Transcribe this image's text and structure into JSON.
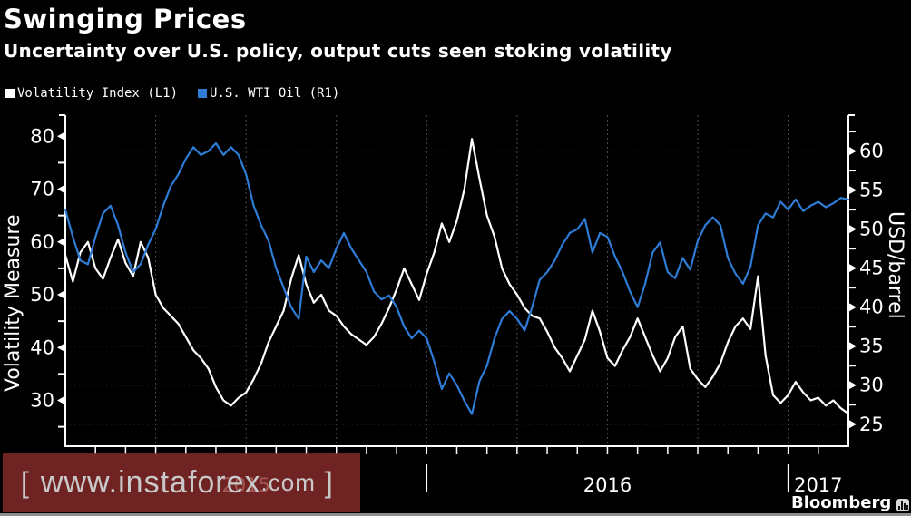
{
  "header": {
    "title": "Swinging Prices",
    "subtitle": "Uncertainty over U.S. policy, output cuts seen stoking volatility"
  },
  "legend": [
    {
      "label": "Volatility Index (L1)",
      "color": "#ffffff"
    },
    {
      "label": "U.S. WTI Oil (R1)",
      "color": "#2e7cd6"
    }
  ],
  "watermark": {
    "open_bracket": "[",
    "main": "www.instaforex",
    "suffix": ".com",
    "close_bracket": "]"
  },
  "credit": {
    "text": "Bloomberg",
    "icon": "bloomberg-terminal-icon"
  },
  "colors": {
    "background": "#000000",
    "grid": "#4a4a4a",
    "axis": "#ffffff",
    "volatility_line": "#ffffff",
    "wti_line": "#2e7cd6",
    "watermark_bg": "rgba(140,44,44,0.8)",
    "watermark_text": "#c9c9c9",
    "bottom_strip": "#8f8f8f"
  },
  "chart_data": {
    "type": "line",
    "title": "Swinging Prices",
    "subtitle": "Uncertainty over U.S. policy, output cuts seen stoking volatility",
    "sampling": "weekly, Jan 2015 - Feb 2017",
    "xlim_months": [
      0,
      26
    ],
    "x_year_labels": [
      {
        "label": "2015",
        "center_month": 6
      },
      {
        "label": "2016",
        "center_month": 18
      },
      {
        "label": "2017",
        "center_month": 25
      }
    ],
    "year_boundary_ticks_months": [
      12,
      24
    ],
    "quarter_gridlines_months": [
      3,
      6,
      9,
      12,
      15,
      18,
      21,
      24
    ],
    "month_ticks_months": [
      1,
      2,
      3,
      4,
      5,
      6,
      7,
      8,
      9,
      10,
      11,
      12,
      13,
      14,
      15,
      16,
      17,
      18,
      19,
      20,
      21,
      22,
      23,
      24,
      25
    ],
    "grid": true,
    "legend_position": "top-left",
    "left_axis": {
      "label": "Volatility Measure",
      "min": 21.5,
      "max": 84,
      "major_ticks": [
        30,
        40,
        50,
        60,
        70,
        80
      ],
      "minor_ticks": [
        25,
        35,
        45,
        55,
        65,
        75
      ]
    },
    "right_axis": {
      "label": "USD/barrel",
      "min": 22.3,
      "max": 64.6,
      "major_ticks": [
        25,
        30,
        35,
        40,
        45,
        50,
        55,
        60
      ],
      "minor_ticks": [
        27.5,
        32.5,
        37.5,
        42.5,
        47.5,
        52.5,
        57.5,
        62.5
      ],
      "gridline_values": [
        25,
        30,
        35,
        40,
        45,
        50,
        55,
        60
      ]
    },
    "series": [
      {
        "name": "Volatility Index (L1)",
        "axis": "left",
        "color": "#ffffff",
        "values": [
          57.5,
          52.5,
          58,
          60,
          55,
          53,
          57,
          60.5,
          56,
          53.5,
          60,
          57,
          50,
          47.5,
          46,
          44.5,
          42,
          39.5,
          38,
          36,
          32.5,
          30,
          29,
          30.5,
          31.5,
          34,
          37,
          41,
          44,
          47,
          53,
          57.5,
          52,
          48.5,
          50,
          47,
          46,
          44,
          42.5,
          41.5,
          40.5,
          42,
          44.5,
          47.5,
          51,
          55,
          52,
          49,
          54,
          58,
          63.5,
          60,
          64,
          70,
          79.5,
          72,
          65,
          61,
          55,
          52,
          50,
          47.5,
          46,
          45.5,
          43,
          40,
          38,
          35.5,
          38.5,
          41.5,
          47,
          43,
          38,
          36.5,
          39.5,
          42,
          45.5,
          42,
          38.5,
          35.5,
          38,
          42,
          44,
          36,
          34,
          32.5,
          34.5,
          37,
          41,
          44,
          45.5,
          43.5,
          53.5,
          38.5,
          31,
          29.5,
          31,
          33.5,
          31.5,
          30,
          30.5,
          29,
          30,
          28.5,
          27.5
        ]
      },
      {
        "name": "U.S. WTI Oil (R1)",
        "axis": "right",
        "color": "#2e7cd6",
        "values": [
          52.5,
          49,
          46,
          45.5,
          49,
          52,
          53,
          50.5,
          47,
          44.5,
          45.5,
          48,
          50,
          53,
          55.5,
          57,
          59,
          60.5,
          59.5,
          60,
          61,
          59.5,
          60.5,
          59.5,
          57,
          53,
          50.5,
          48.5,
          45,
          42.5,
          40,
          38.5,
          46.5,
          44.5,
          46,
          45,
          47.5,
          49.5,
          47.5,
          46,
          44.5,
          42,
          41,
          41.5,
          40,
          37.5,
          36,
          37,
          36,
          33,
          29.5,
          31.5,
          30,
          28,
          26.3,
          30.5,
          32.5,
          36,
          38.5,
          39.5,
          38.5,
          37,
          40,
          43.5,
          44.5,
          46,
          48,
          49.5,
          50,
          51.3,
          47,
          49.5,
          49,
          46.5,
          44.5,
          42,
          40,
          43,
          47,
          48.3,
          44.5,
          43.7,
          46.3,
          44.8,
          48.5,
          50.5,
          51.5,
          50.5,
          46.3,
          44.3,
          43,
          45.2,
          50.5,
          52,
          51.5,
          53.5,
          52.5,
          53.8,
          52.3,
          53,
          53.5,
          52.8,
          53.3,
          54,
          53.8
        ]
      }
    ]
  }
}
